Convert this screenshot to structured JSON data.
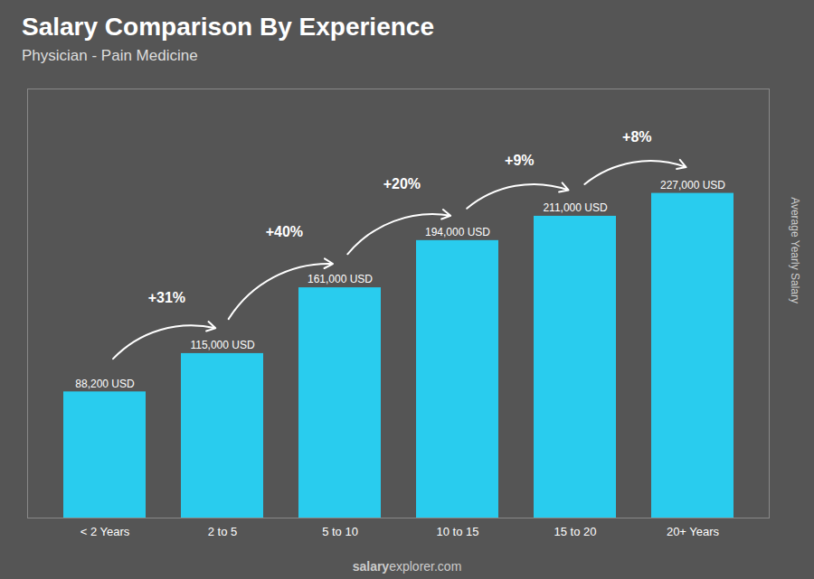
{
  "chart_data": {
    "type": "bar",
    "title": "Salary Comparison By Experience",
    "subtitle": "Physician - Pain Medicine",
    "categories": [
      "< 2 Years",
      "2 to 5",
      "5 to 10",
      "10 to 15",
      "15 to 20",
      "20+ Years"
    ],
    "values": [
      88200,
      115000,
      161000,
      194000,
      211000,
      227000
    ],
    "value_labels": [
      "88,200 USD",
      "115,000 USD",
      "161,000 USD",
      "194,000 USD",
      "211,000 USD",
      "227,000 USD"
    ],
    "data_labels": true,
    "annotations": [
      "+31%",
      "+40%",
      "+20%",
      "+9%",
      "+8%"
    ],
    "ylabel": "Average Yearly Salary",
    "caption": [
      "salary",
      "explorer.com"
    ],
    "color": "#29ccee",
    "ylim": [
      0,
      300000
    ],
    "tick_labels": "x",
    "grid": false
  }
}
